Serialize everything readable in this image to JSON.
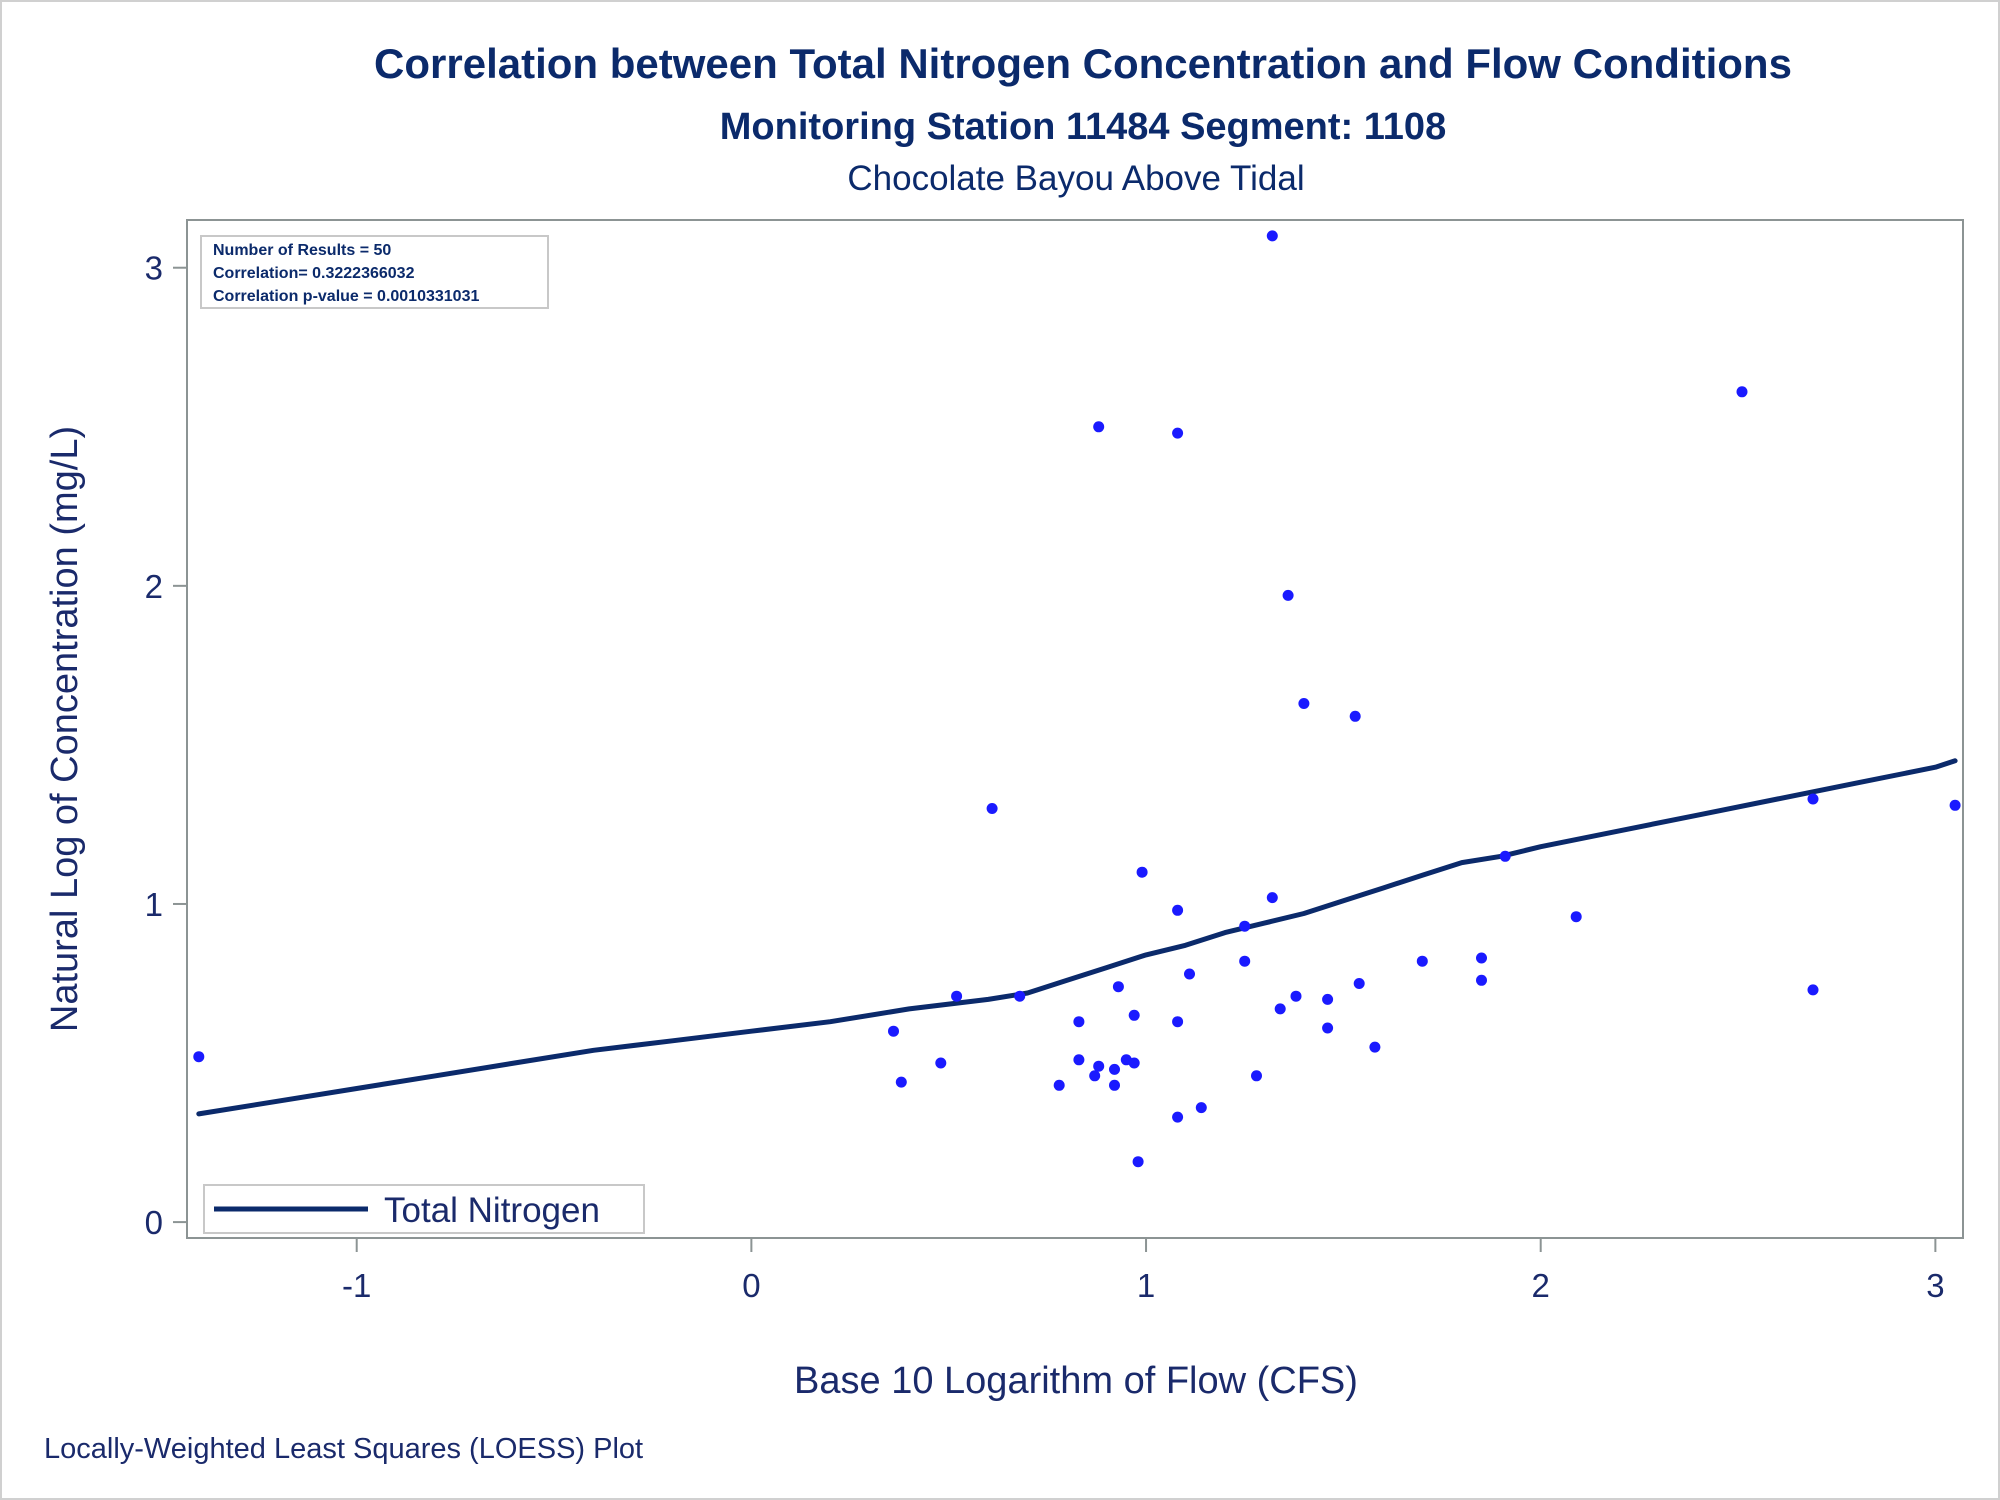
{
  "chart_data": {
    "type": "scatter",
    "title": "Correlation between Total Nitrogen Concentration and Flow Conditions",
    "subtitle": "Monitoring Station 11484 Segment: 1108",
    "subtitle2": "Chocolate Bayou Above Tidal",
    "xlabel": "Base 10 Logarithm of Flow (CFS)",
    "ylabel": "Natural Log of Concentration (mg/L)",
    "xlim": [
      -1.43,
      3.07
    ],
    "ylim": [
      -0.05,
      3.15
    ],
    "x_ticks": [
      -1,
      0,
      1,
      2,
      3
    ],
    "y_ticks": [
      0,
      1,
      2,
      3
    ],
    "x_tick_labels": [
      "-1",
      "0",
      "1",
      "2",
      "3"
    ],
    "y_tick_labels": [
      "0",
      "1",
      "2",
      "3"
    ],
    "grid": false,
    "legend_position": "bottom-left",
    "stats": [
      "Number of Results = 50",
      "Correlation= 0.3222366032",
      "Correlation p-value = 0.0010331031"
    ],
    "footnote": "Locally-Weighted Least Squares (LOESS) Plot",
    "series": [
      {
        "kind": "points",
        "color": "#1a1aff",
        "x": [
          -1.4,
          0.36,
          0.38,
          0.48,
          0.52,
          0.61,
          0.68,
          0.78,
          0.83,
          0.83,
          0.87,
          0.88,
          0.88,
          0.92,
          0.92,
          0.93,
          0.95,
          0.97,
          0.97,
          0.98,
          0.99,
          1.08,
          1.08,
          1.08,
          1.08,
          1.11,
          1.14,
          1.25,
          1.25,
          1.28,
          1.32,
          1.32,
          1.34,
          1.36,
          1.38,
          1.4,
          1.46,
          1.46,
          1.53,
          1.54,
          1.58,
          1.7,
          1.85,
          1.85,
          1.91,
          2.09,
          2.51,
          2.69,
          2.69,
          3.05
        ],
        "y": [
          0.52,
          0.6,
          0.44,
          0.5,
          0.71,
          1.3,
          0.71,
          0.43,
          0.51,
          0.63,
          0.46,
          0.49,
          2.5,
          0.48,
          0.43,
          0.74,
          0.51,
          0.5,
          0.65,
          0.19,
          1.1,
          0.33,
          0.63,
          0.98,
          2.48,
          0.78,
          0.36,
          0.82,
          0.93,
          0.46,
          1.02,
          3.1,
          0.67,
          1.97,
          0.71,
          1.63,
          0.61,
          0.7,
          1.59,
          0.75,
          0.55,
          0.82,
          0.76,
          0.83,
          1.15,
          0.96,
          2.61,
          0.73,
          1.33,
          1.31
        ]
      },
      {
        "kind": "line",
        "name": "Total Nitrogen",
        "color": "#0b2a6b",
        "x": [
          -1.4,
          -1.2,
          -1.0,
          -0.8,
          -0.6,
          -0.4,
          -0.2,
          0.0,
          0.2,
          0.4,
          0.6,
          0.7,
          0.8,
          0.9,
          1.0,
          1.1,
          1.2,
          1.3,
          1.4,
          1.5,
          1.6,
          1.7,
          1.8,
          1.9,
          2.0,
          2.2,
          2.4,
          2.6,
          2.8,
          3.0,
          3.05
        ],
        "y": [
          0.34,
          0.38,
          0.42,
          0.46,
          0.5,
          0.54,
          0.57,
          0.6,
          0.63,
          0.67,
          0.7,
          0.72,
          0.76,
          0.8,
          0.84,
          0.87,
          0.91,
          0.94,
          0.97,
          1.01,
          1.05,
          1.09,
          1.13,
          1.15,
          1.18,
          1.23,
          1.28,
          1.33,
          1.38,
          1.43,
          1.45
        ]
      }
    ]
  }
}
